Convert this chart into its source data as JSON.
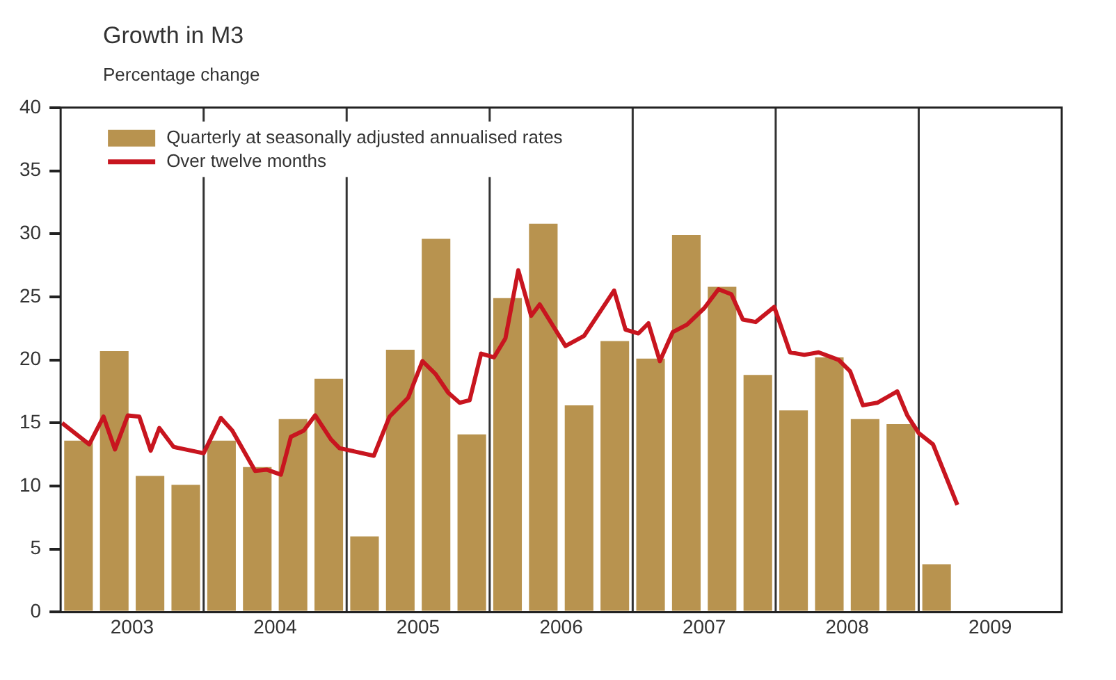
{
  "chart_data": {
    "type": "bar",
    "title": "Growth in M3",
    "ylabel": "Percentage change",
    "series": [
      {
        "name": "Quarterly at seasonally adjusted annualised rates",
        "color": "#b8934f",
        "x": [
          2003.125,
          2003.375,
          2003.625,
          2003.875,
          2004.125,
          2004.375,
          2004.625,
          2004.875,
          2005.125,
          2005.375,
          2005.625,
          2005.875,
          2006.125,
          2006.375,
          2006.625,
          2006.875,
          2007.125,
          2007.375,
          2007.625,
          2007.875,
          2008.125,
          2008.375,
          2008.625,
          2008.875,
          2009.125
        ],
        "values": [
          13.6,
          20.7,
          10.8,
          10.1,
          13.6,
          11.5,
          15.3,
          18.5,
          6.0,
          20.8,
          29.6,
          14.1,
          24.9,
          30.8,
          16.4,
          21.5,
          20.1,
          29.9,
          25.8,
          18.8,
          16.0,
          20.2,
          15.3,
          14.9,
          3.8
        ]
      },
      {
        "name": "Over twelve months",
        "type": "line",
        "color": "#c8151f",
        "x": [
          2003.01,
          2003.2,
          2003.3,
          2003.38,
          2003.47,
          2003.55,
          2003.63,
          2003.69,
          2003.79,
          2004.0,
          2004.12,
          2004.2,
          2004.36,
          2004.44,
          2004.54,
          2004.61,
          2004.7,
          2004.78,
          2004.89,
          2004.95,
          2005.19,
          2005.3,
          2005.43,
          2005.53,
          2005.62,
          2005.71,
          2005.79,
          2005.86,
          2005.94,
          2006.03,
          2006.11,
          2006.2,
          2006.29,
          2006.35,
          2006.53,
          2006.66,
          2006.87,
          2006.95,
          2007.04,
          2007.11,
          2007.19,
          2007.28,
          2007.38,
          2007.5,
          2007.6,
          2007.69,
          2007.77,
          2007.86,
          2007.99,
          2008.1,
          2008.2,
          2008.3,
          2008.44,
          2008.52,
          2008.61,
          2008.71,
          2008.85,
          2008.92,
          2009.0,
          2009.1,
          2009.27
        ],
        "values": [
          15.0,
          13.3,
          15.5,
          12.9,
          15.6,
          15.5,
          12.8,
          14.6,
          13.1,
          12.6,
          15.4,
          14.4,
          11.2,
          11.3,
          10.9,
          13.9,
          14.4,
          15.6,
          13.7,
          13.0,
          12.4,
          15.5,
          17.0,
          19.9,
          18.9,
          17.4,
          16.6,
          16.8,
          20.5,
          20.2,
          21.7,
          27.1,
          23.5,
          24.4,
          21.1,
          21.9,
          25.5,
          22.4,
          22.1,
          22.9,
          19.9,
          22.2,
          22.8,
          24.1,
          25.6,
          25.2,
          23.2,
          23.0,
          24.2,
          20.6,
          20.4,
          20.6,
          20.0,
          19.1,
          16.4,
          16.6,
          17.5,
          15.6,
          14.2,
          13.3,
          8.5
        ]
      }
    ],
    "xlim": [
      2003,
      2010
    ],
    "xticks": [
      {
        "value": 2003.5,
        "label": "2003"
      },
      {
        "value": 2004.5,
        "label": "2004"
      },
      {
        "value": 2005.5,
        "label": "2005"
      },
      {
        "value": 2006.5,
        "label": "2006"
      },
      {
        "value": 2007.5,
        "label": "2007"
      },
      {
        "value": 2008.5,
        "label": "2008"
      },
      {
        "value": 2009.5,
        "label": "2009"
      }
    ],
    "ylim": [
      0,
      40
    ],
    "yticks": [
      0,
      5,
      10,
      15,
      20,
      25,
      30,
      35,
      40
    ],
    "ref_lines": [
      {
        "axis": "x",
        "value": 2004,
        "color": "#333333"
      },
      {
        "axis": "x",
        "value": 2005,
        "color": "#333333"
      },
      {
        "axis": "x",
        "value": 2006,
        "color": "#333333"
      },
      {
        "axis": "x",
        "value": 2007,
        "color": "#333333"
      },
      {
        "axis": "x",
        "value": 2008,
        "color": "#333333"
      },
      {
        "axis": "x",
        "value": 2009,
        "color": "#333333"
      }
    ],
    "grid": false,
    "legend": "top left",
    "marker": "none",
    "line_style": "solid"
  }
}
